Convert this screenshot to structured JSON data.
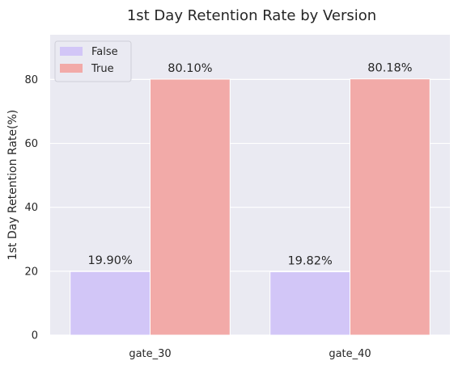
{
  "chart_data": {
    "type": "bar",
    "title": "1st Day Retention Rate by Version",
    "xlabel": "",
    "ylabel": "1st Day Retention Rate(%)",
    "categories": [
      "gate_30",
      "gate_40"
    ],
    "series": [
      {
        "name": "False",
        "color": "#d2c6f7",
        "values": [
          19.9,
          19.82
        ],
        "labels": [
          "19.90%",
          "19.82%"
        ]
      },
      {
        "name": "True",
        "color": "#f2aaa8",
        "values": [
          80.1,
          80.18
        ],
        "labels": [
          "80.10%",
          "80.18%"
        ]
      }
    ],
    "ylim": [
      0,
      94
    ],
    "yticks": [
      "0",
      "20",
      "40",
      "60",
      "80"
    ],
    "grid": true,
    "legend": "top-left",
    "background": "#eaeaf2"
  }
}
